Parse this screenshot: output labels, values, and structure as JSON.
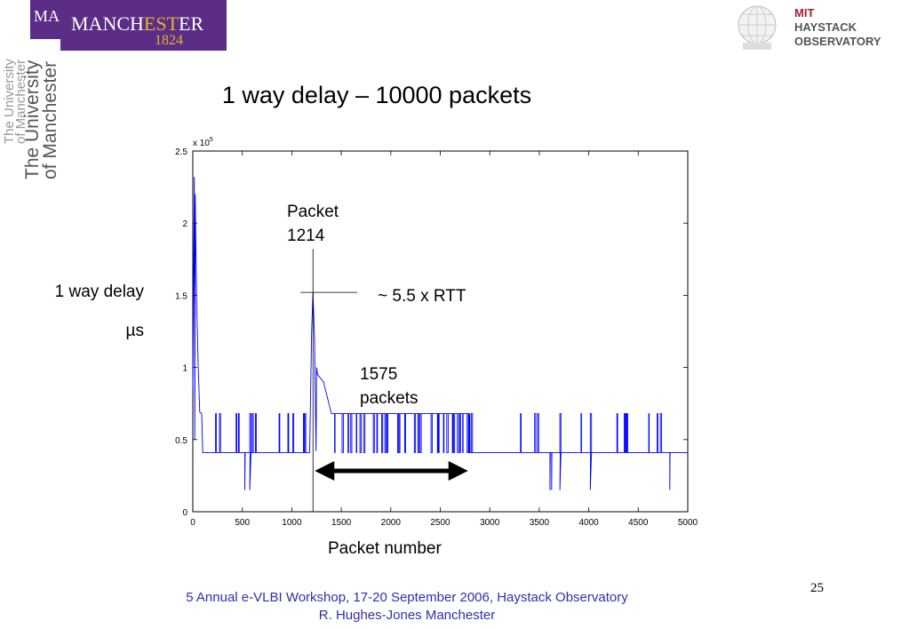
{
  "slide": {
    "title": "1 way delay – 10000 packets",
    "page_number": "25",
    "footer_line1": "5 Annual e-VLBI Workshop, 17-20 September 2006, Haystack Observatory",
    "footer_line2": "R. Hughes-Jones  Manchester"
  },
  "logos": {
    "manchester_prefix": "MA",
    "manchester_word_a": "MANCH",
    "manchester_word_b": "EST",
    "manchester_word_c": "ER",
    "manchester_year": "1824",
    "uni_line1": "The University",
    "uni_line2": "of Manchester",
    "mit_line1": "MIT",
    "mit_line2": "HAYSTACK",
    "mit_line3": "OBSERVATORY",
    "manchester_bg": "#5b2d86",
    "manchester_gold": "#e7b22c",
    "mit_red": "#a31f34"
  },
  "chart_data": {
    "type": "line",
    "xlabel": "Packet number",
    "ylabel_line1": "1 way delay",
    "ylabel_line2": "µs",
    "y_multiplier": "x 10",
    "y_multiplier_exp": "5",
    "xlim": [
      0,
      5000
    ],
    "ylim": [
      0,
      2.5
    ],
    "x_ticks": [
      "0",
      "500",
      "1000",
      "1500",
      "2000",
      "2500",
      "3000",
      "3500",
      "4000",
      "4500",
      "5000"
    ],
    "y_ticks": [
      "0",
      "0.5",
      "1",
      "1.5",
      "2",
      "2.5"
    ],
    "line_color": "#0000ff",
    "series": [
      {
        "values_note_x": [
          0,
          15,
          30,
          40,
          55,
          70,
          90,
          100,
          200,
          1180,
          1200,
          1214,
          1230,
          1260,
          1320,
          1400,
          1600,
          2000,
          2400,
          2790,
          2800,
          3000,
          4000,
          5000
        ],
        "values_y": [
          0.85,
          2.32,
          1.9,
          1.4,
          1.0,
          0.69,
          0.68,
          0.42,
          0.42,
          0.42,
          1.25,
          1.52,
          1.2,
          0.95,
          0.9,
          0.68,
          0.68,
          0.68,
          0.68,
          0.68,
          0.42,
          0.42,
          0.42,
          0.42
        ]
      }
    ],
    "baseline_low": 0.41,
    "baseline_high": 0.68,
    "annotations": {
      "packet_label_line1": "Packet",
      "packet_label_line2": "1214",
      "packet_x": 1214,
      "rtt_label": "~ 5.5 x RTT",
      "rtt_y": 1.52,
      "count_label_line1": "1575",
      "count_label_line2": "packets",
      "arrow_x_start": 1214,
      "arrow_x_end": 2789
    }
  }
}
